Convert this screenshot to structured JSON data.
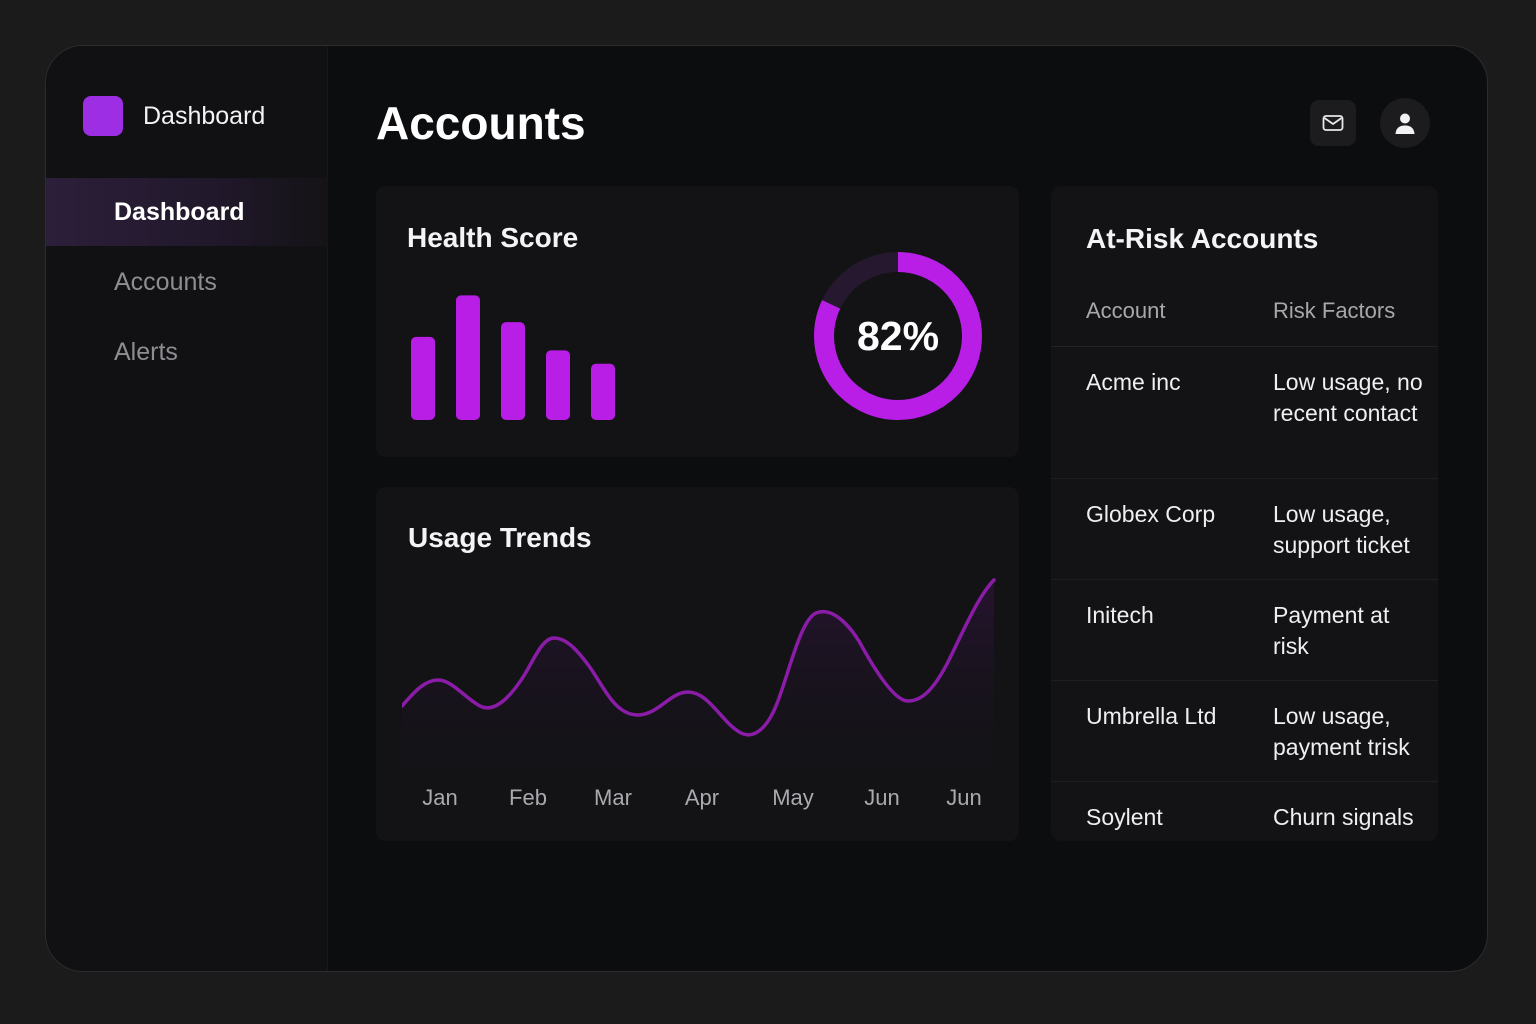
{
  "sidebar": {
    "brand": "Dashboard",
    "items": [
      {
        "label": "Dashboard",
        "active": true
      },
      {
        "label": "Accounts",
        "active": false
      },
      {
        "label": "Alerts",
        "active": false
      }
    ]
  },
  "header": {
    "title": "Accounts",
    "icons": [
      "mail-icon",
      "user-icon"
    ]
  },
  "health": {
    "title": "Health Score",
    "score_label": "82%",
    "score": 82,
    "bars": [
      62,
      93,
      73,
      52,
      42
    ],
    "accent": "#b81ee6",
    "ring_track": "#25182f"
  },
  "usage": {
    "title": "Usage Trends",
    "months": [
      "Jan",
      "Feb",
      "Mar",
      "Apr",
      "May",
      "Jun",
      "Jun"
    ],
    "line_color": "#8a1ca8"
  },
  "risk": {
    "title": "At-Risk Accounts",
    "columns": [
      "Account",
      "Risk Factors"
    ],
    "rows": [
      {
        "account": "Acme inc",
        "factors": "Low usage, no recent contact"
      },
      {
        "account": "Globex Corp",
        "factors": "Low usage, support ticket"
      },
      {
        "account": "Initech",
        "factors": "Payment at risk"
      },
      {
        "account": "Umbrella Ltd",
        "factors": "Low usage, payment trisk"
      },
      {
        "account": "Soylent",
        "factors": "Churn signals"
      }
    ]
  }
}
